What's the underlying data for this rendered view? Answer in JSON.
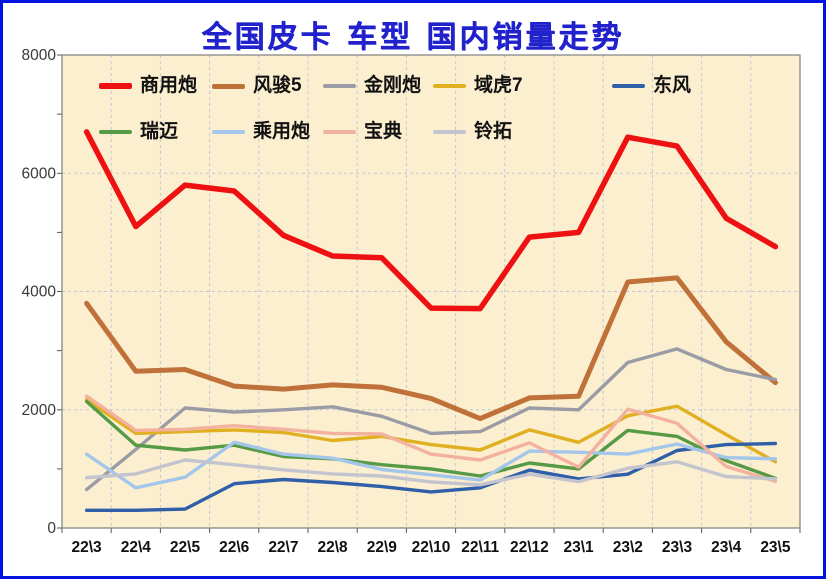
{
  "chart_data": {
    "type": "line",
    "title": "全国皮卡 车型 国内销量走势",
    "xlabel": "",
    "ylabel": "",
    "ylim": [
      0,
      8000
    ],
    "ytick_step": 2000,
    "yticks": [
      "0",
      "2000",
      "4000",
      "6000",
      "8000"
    ],
    "minor_ytick_step": 1000,
    "grid": "dashed, horizontal every 2000 and vertical between categories",
    "legend_position": "inside plot, top, two rows",
    "categories": [
      "22\\3",
      "22\\4",
      "22\\5",
      "22\\6",
      "22\\7",
      "22\\8",
      "22\\9",
      "22\\10",
      "22\\11",
      "22\\12",
      "23\\1",
      "23\\2",
      "23\\3",
      "23\\4",
      "23\\5"
    ],
    "series": [
      {
        "name": "商用炮",
        "color": "#EE1111",
        "width": 5.5,
        "values": [
          6700,
          5100,
          5800,
          5700,
          4950,
          4600,
          4570,
          3720,
          3710,
          4920,
          5000,
          6610,
          6460,
          5240,
          4760
        ]
      },
      {
        "name": "风骏5",
        "color": "#BF7139",
        "width": 5,
        "values": [
          3800,
          2650,
          2680,
          2400,
          2350,
          2420,
          2380,
          2190,
          1850,
          2200,
          2230,
          4160,
          4230,
          3150,
          2460
        ]
      },
      {
        "name": "金刚炮",
        "color": "#9A9BA4",
        "width": 3.4,
        "values": [
          650,
          1330,
          2030,
          1960,
          2000,
          2050,
          1890,
          1600,
          1630,
          2030,
          2000,
          2800,
          3030,
          2680,
          2510
        ]
      },
      {
        "name": "域虎7",
        "color": "#E0B020",
        "width": 3.4,
        "values": [
          2170,
          1600,
          1630,
          1660,
          1615,
          1480,
          1550,
          1410,
          1320,
          1660,
          1450,
          1900,
          2060,
          1580,
          1120
        ]
      },
      {
        "name": "东风",
        "color": "#2E5FA8",
        "width": 3.4,
        "values": [
          300,
          300,
          320,
          750,
          820,
          770,
          700,
          610,
          680,
          980,
          830,
          910,
          1310,
          1410,
          1430
        ]
      },
      {
        "name": "瑞迈",
        "color": "#579A46",
        "width": 3.4,
        "values": [
          2140,
          1400,
          1320,
          1400,
          1210,
          1170,
          1070,
          1000,
          880,
          1100,
          1000,
          1650,
          1550,
          1140,
          840
        ]
      },
      {
        "name": "乘用炮",
        "color": "#A3C6EA",
        "width": 3.4,
        "values": [
          1250,
          680,
          860,
          1450,
          1250,
          1180,
          990,
          900,
          810,
          1300,
          1280,
          1250,
          1420,
          1190,
          1170
        ]
      },
      {
        "name": "宝典",
        "color": "#F3B1A0",
        "width": 3.4,
        "values": [
          2230,
          1650,
          1670,
          1730,
          1670,
          1600,
          1590,
          1250,
          1150,
          1440,
          1030,
          2010,
          1770,
          1040,
          790
        ]
      },
      {
        "name": "铃拓",
        "color": "#C4C4CE",
        "width": 3.4,
        "values": [
          850,
          915,
          1150,
          1070,
          985,
          915,
          880,
          780,
          730,
          910,
          785,
          1010,
          1120,
          870,
          830
        ]
      }
    ],
    "legend_rows": [
      [
        0,
        1,
        2,
        3,
        4
      ],
      [
        5,
        6,
        7,
        8
      ]
    ],
    "colors": {
      "frame_border": "#0013DF",
      "title": "#2222CC",
      "plot_background": "#FBEFD0",
      "outer_background": "#FFFFFF",
      "gridline": "#C3C6D6",
      "axis": "#7F7F7F",
      "tick_label": "#3A3A3A",
      "category_label": "#111111"
    }
  }
}
